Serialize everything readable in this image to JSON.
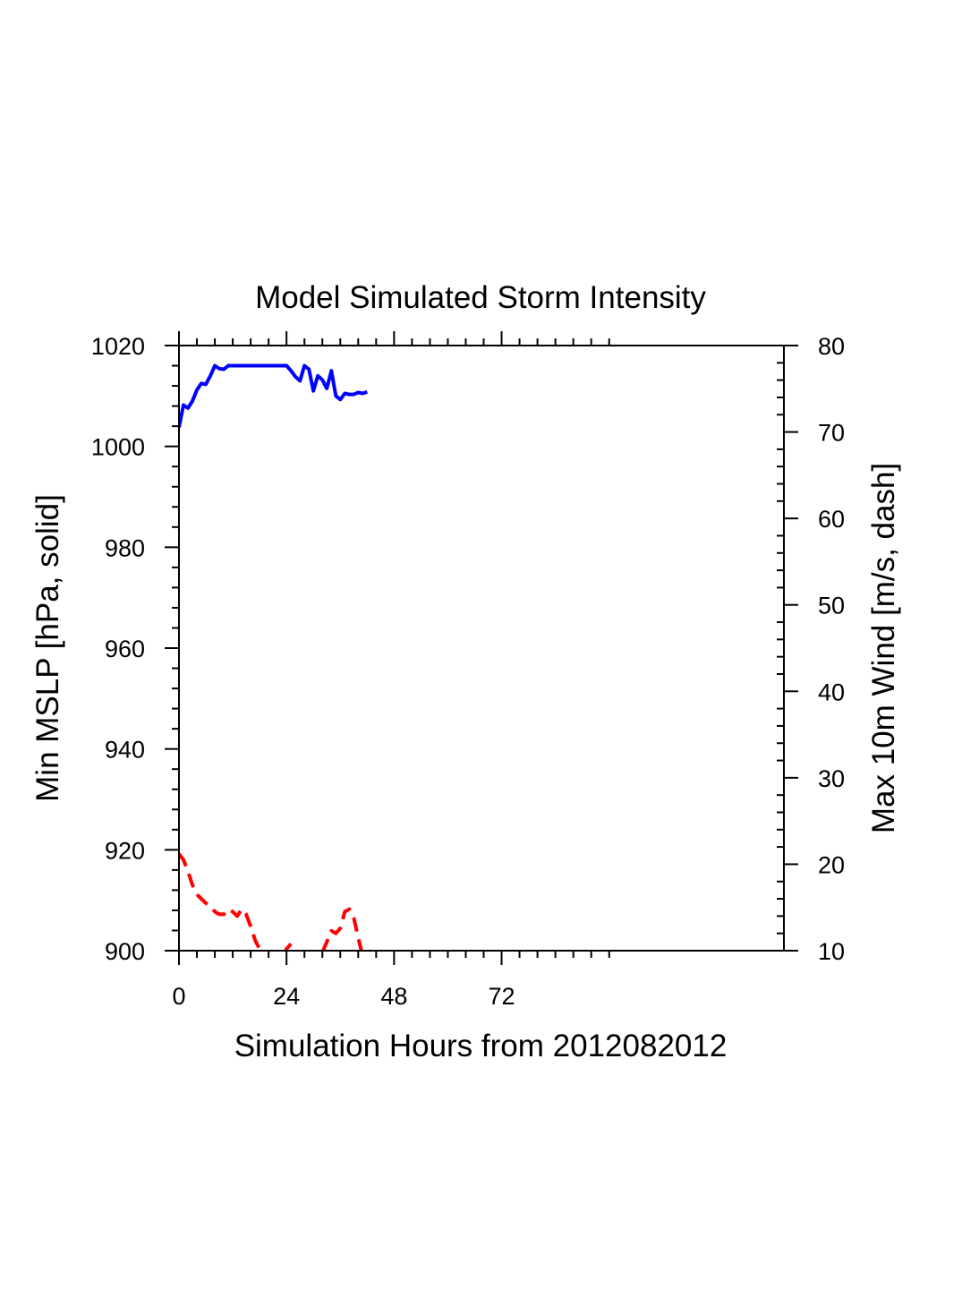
{
  "chart_data": {
    "type": "line",
    "title": "Model Simulated Storm Intensity",
    "xlabel": "Simulation Hours from 2012082012",
    "ylabel_left": "Min MSLP  [hPa, solid]",
    "ylabel_right": "Max 10m Wind  [m/s, dash]",
    "xlim": [
      0,
      135
    ],
    "ylim_left": [
      900,
      1020
    ],
    "ylim_right": [
      10,
      80
    ],
    "x_ticks": [
      0,
      24,
      48,
      72
    ],
    "y_ticks_left": [
      900,
      920,
      940,
      960,
      980,
      1000,
      1020
    ],
    "y_ticks_right": [
      10,
      20,
      30,
      40,
      50,
      60,
      70,
      80
    ],
    "grid": false,
    "series": [
      {
        "axis": "left",
        "style": "solid",
        "color": "#0000ff",
        "x": [
          0,
          1,
          2,
          3,
          4,
          5,
          6,
          7,
          8,
          9,
          10,
          11,
          12,
          13,
          14,
          15,
          16,
          17,
          18,
          19,
          20,
          21,
          22,
          23,
          24,
          25,
          26,
          27,
          28,
          29,
          30,
          31,
          32,
          33,
          34,
          35,
          36,
          37,
          38,
          39,
          40,
          41,
          42
        ],
        "values": [
          1003.8,
          1008.2,
          1007.6,
          1009.0,
          1011.2,
          1012.5,
          1012.3,
          1014.0,
          1016.0,
          1015.4,
          1015.3,
          1016.0,
          1016.0,
          1016.0,
          1016.0,
          1016.0,
          1016.0,
          1016.0,
          1016.0,
          1016.0,
          1016.0,
          1016.0,
          1016.0,
          1016.0,
          1016.0,
          1015.0,
          1013.8,
          1013.0,
          1016.0,
          1015.3,
          1011.0,
          1014.0,
          1013.2,
          1011.5,
          1015.0,
          1010.0,
          1009.3,
          1010.5,
          1010.3,
          1010.3,
          1010.7,
          1010.5,
          1010.8
        ]
      },
      {
        "axis": "right",
        "style": "dash",
        "color": "#ff0000",
        "x": [
          0,
          1,
          2,
          3,
          4,
          5,
          6,
          7,
          8,
          9,
          10,
          11,
          12,
          13,
          14,
          15,
          16,
          17,
          18,
          19,
          20,
          21,
          22,
          23,
          24,
          25,
          26,
          27,
          28,
          29,
          30,
          31,
          32,
          33,
          34,
          35,
          36,
          37,
          38,
          39,
          40,
          41
        ],
        "values": [
          21.2,
          20.5,
          19.2,
          17.6,
          16.5,
          16.0,
          15.5,
          15.2,
          14.5,
          14.2,
          14.2,
          14.8,
          14.5,
          14.0,
          14.8,
          14.2,
          12.8,
          11.2,
          10.2,
          9.6,
          9.2,
          9.0,
          9.0,
          9.2,
          10.2,
          10.8,
          9.5,
          8.5,
          8.2,
          8.0,
          8.3,
          9.0,
          9.8,
          11.0,
          12.3,
          12.0,
          12.6,
          14.5,
          14.8,
          13.8,
          11.5,
          9.3
        ]
      }
    ]
  }
}
